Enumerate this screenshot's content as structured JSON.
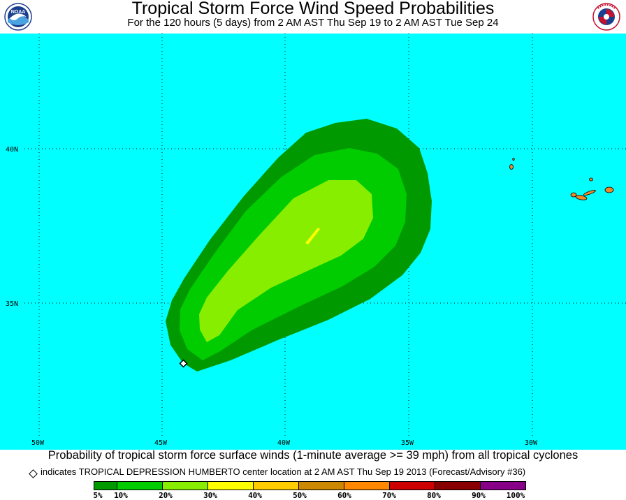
{
  "header": {
    "title": "Tropical Storm Force Wind Speed Probabilities",
    "subtitle": "For the 120 hours (5 days) from 2 AM AST Thu Sep 19 to 2 AM AST Tue Sep 24",
    "left_logo": "noaa-logo-icon",
    "left_logo_text": "NOAA",
    "right_logo": "national-weather-service-logo-icon"
  },
  "map": {
    "ocean_color": "#00ffff",
    "land_color": "#f08a28",
    "lat_labels": [
      "40N",
      "35N"
    ],
    "lon_labels": [
      "50W",
      "45W",
      "40W",
      "35W",
      "30W"
    ]
  },
  "footer": {
    "caption": "Probability of tropical storm force surface winds (1-minute average >= 39 mph) from all tropical cyclones",
    "note": "indicates TROPICAL DEPRESSION HUMBERTO center location at 2 AM AST Thu Sep 19 2013 (Forecast/Advisory #36)"
  },
  "legend": {
    "colors": [
      "#009900",
      "#00cc00",
      "#88ee00",
      "#ffff00",
      "#ffcc00",
      "#cc8800",
      "#ff8800",
      "#cc0000",
      "#880000",
      "#880088"
    ],
    "labels": [
      "5%",
      "10%",
      "20%",
      "30%",
      "40%",
      "50%",
      "60%",
      "70%",
      "80%",
      "90%",
      "100%"
    ]
  }
}
